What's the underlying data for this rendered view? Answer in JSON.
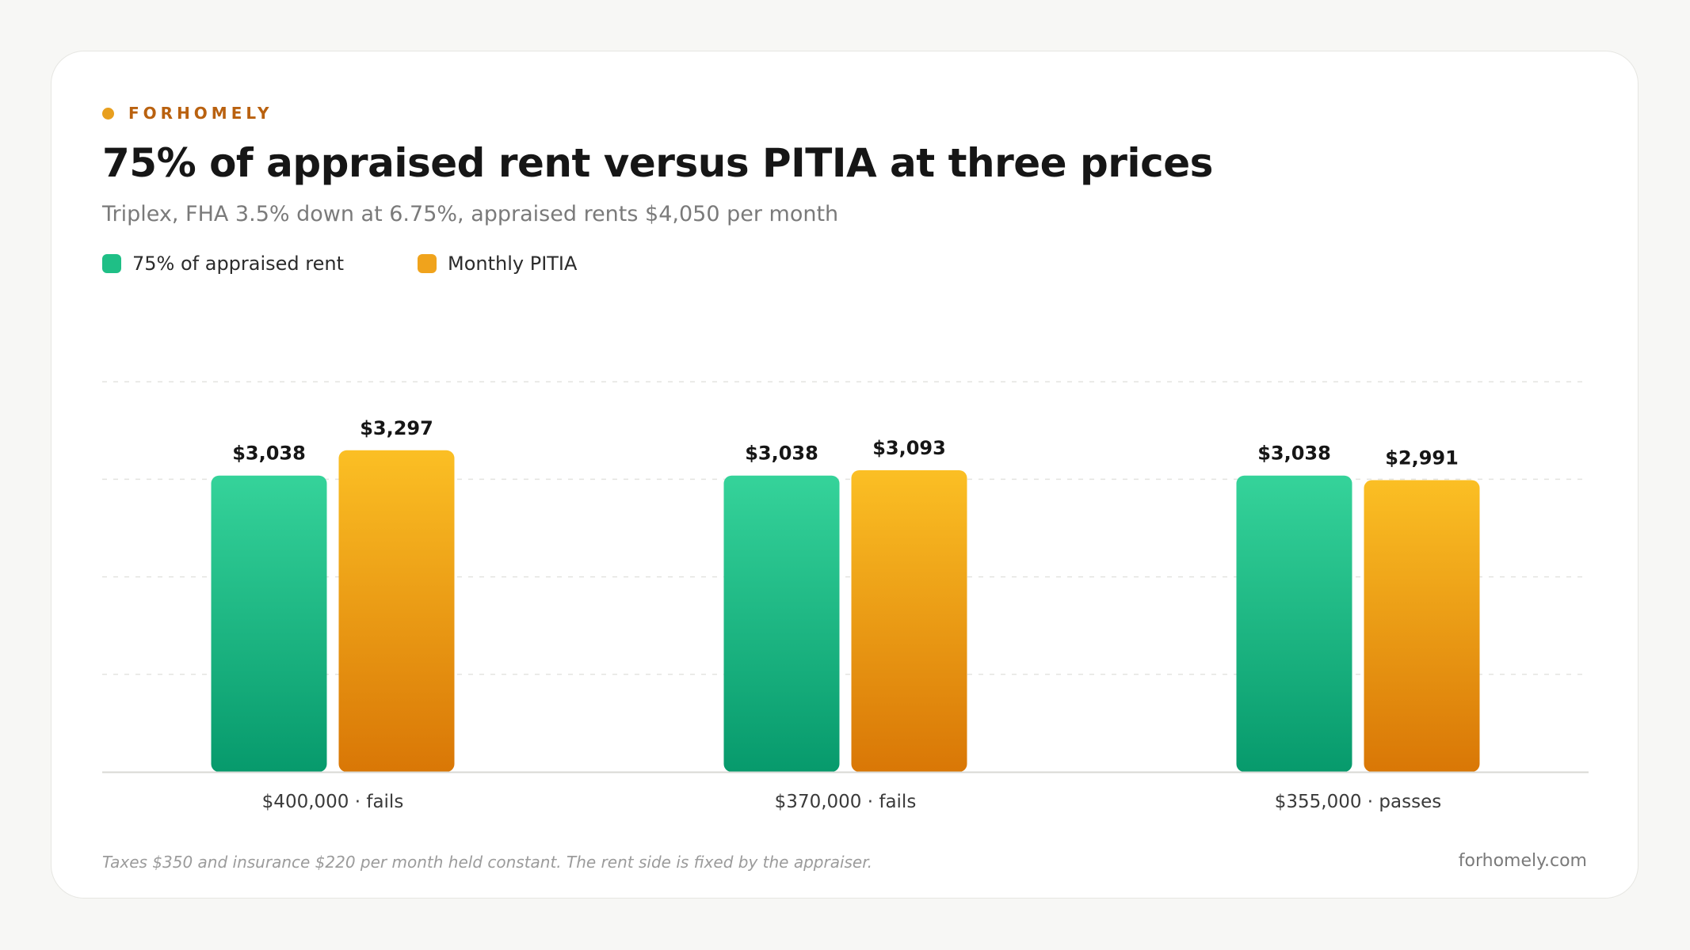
{
  "brand": {
    "name": "FORHOMELY"
  },
  "footer": {
    "note": "Taxes $350 and insurance $220 per month held constant. The rent side is fixed by the appraiser.",
    "site": "forhomely.com"
  },
  "colors": {
    "brand": "#e89f1e",
    "brand_text": "#b9610f",
    "rent_top": "#35d39a",
    "rent_bottom": "#079a6c",
    "rent_swatch": "#1fbf86",
    "pitia_top": "#fbbf24",
    "pitia_bottom": "#d97706",
    "pitia_swatch": "#f0a31c"
  },
  "chart_data": {
    "type": "bar",
    "title": "75% of appraised rent versus PITIA at three prices",
    "subtitle": "Triplex, FHA 3.5% down at 6.75%, appraised rents $4,050 per month",
    "categories": [
      "$400,000 · fails",
      "$370,000 · fails",
      "$355,000 · passes"
    ],
    "series": [
      {
        "name": "75% of appraised rent",
        "values": [
          3038,
          3038,
          3038
        ],
        "labels": [
          "$3,038",
          "$3,038",
          "$3,038"
        ]
      },
      {
        "name": "Monthly PITIA",
        "values": [
          3297,
          3093,
          2991
        ],
        "labels": [
          "$3,297",
          "$3,093",
          "$2,991"
        ]
      }
    ],
    "ylim": [
      0,
      4000
    ],
    "grid": true,
    "legend": "top-left",
    "xlabel": "",
    "ylabel": ""
  }
}
